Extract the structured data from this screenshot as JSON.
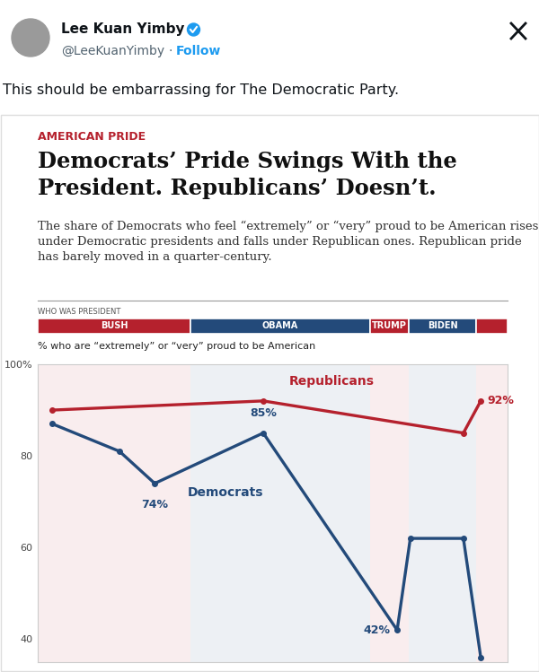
{
  "post": {
    "name": "Lee Kuan Yimby",
    "handle": "@LeeKuanYimby",
    "separator": "·",
    "follow": "Follow",
    "text": "This should be embarrassing for The Democratic Party."
  },
  "chart_data": {
    "type": "line",
    "kicker": "AMERICAN PRIDE",
    "title": "Democrats’ Pride Swings With the President. Republicans’ Doesn’t.",
    "subtitle": "The share of Democrats who feel “extremely” or “very” proud to be American rises under Democratic presidents and falls under Republican ones. Republican pride has barely moved in a quarter-century.",
    "ylabel": "% who are “extremely” or “very” proud to be American",
    "periods": {
      "title": "WHO WAS PRESIDENT",
      "items": [
        {
          "label": "BUSH",
          "start": 0,
          "end": 32.5,
          "color": "#b5212d"
        },
        {
          "label": "OBAMA",
          "start": 32.5,
          "end": 70.7,
          "color": "#234a7a"
        },
        {
          "label": "TRUMP",
          "start": 70.7,
          "end": 79.0,
          "color": "#b5212d"
        },
        {
          "label": "BIDEN",
          "start": 79.0,
          "end": 93.3,
          "color": "#234a7a"
        },
        {
          "start": 93.3,
          "end": 100,
          "color": "#b5212d"
        }
      ]
    },
    "xlim": [
      0,
      100
    ],
    "ylim": [
      35,
      100
    ],
    "yticks": [
      40,
      60,
      80,
      {
        "value": 100,
        "label": "100%"
      }
    ],
    "tick_labels": "y",
    "grid": false,
    "data_labels": true,
    "series": [
      {
        "name": "Republicans",
        "color": "#b5212d",
        "marker": "o",
        "x": [
          3.1,
          48.0,
          90.6,
          94.3
        ],
        "values": [
          90,
          92,
          85,
          92
        ],
        "value_labels": [
          null,
          null,
          null,
          "92%"
        ]
      },
      {
        "name": "Democrats",
        "color": "#234a7a",
        "marker": "o",
        "x": [
          3.1,
          17.4,
          24.9,
          48.0,
          76.5,
          79.3,
          90.6,
          94.3
        ],
        "values": [
          87,
          81,
          74,
          85,
          42,
          62,
          62,
          36
        ],
        "value_labels": [
          null,
          null,
          "74%",
          "85%",
          "42%",
          null,
          null,
          null
        ]
      }
    ]
  }
}
